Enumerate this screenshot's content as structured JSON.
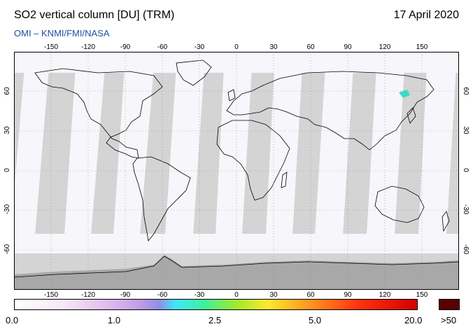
{
  "header": {
    "title": "SO2 vertical column [DU] (TRM)",
    "date": "17 April 2020",
    "credit": "OMI  –  KNMI/FMI/NASA"
  },
  "map": {
    "lon_ticks": [
      "-150",
      "-120",
      "-90",
      "-60",
      "-30",
      "0",
      "30",
      "60",
      "90",
      "120",
      "150"
    ],
    "lat_ticks": [
      "60",
      "30",
      "0",
      "-30",
      "-60"
    ],
    "lon_range": [
      -180,
      180
    ],
    "lat_range": [
      -90,
      90
    ],
    "colors": {
      "no_data": "#d4d4d4",
      "land_mask": "#a8a8a8",
      "swath": "#f7f7fb",
      "coastline": "#000000",
      "grid": "#888888"
    }
  },
  "colorbar": {
    "labels": [
      "0.0",
      "1.0",
      "2.5",
      "5.0",
      "20.0",
      ">50"
    ],
    "overflow_color": "#5a0000"
  }
}
